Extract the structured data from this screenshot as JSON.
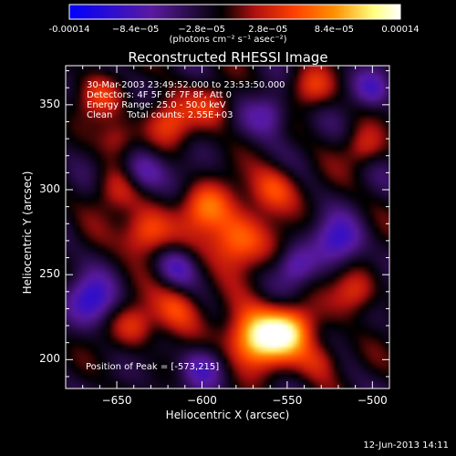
{
  "colorbar": {
    "ticks": [
      "-0.00014",
      "−8.4e−05",
      "−2.8e−05",
      "2.8e−05",
      "8.4e−05",
      "0.00014"
    ],
    "units": "(photons cm⁻² s⁻¹ asec⁻²)",
    "colors": [
      "#0000ff",
      "#5a1aa0",
      "#000000",
      "#b01010",
      "#ff4000",
      "#ff9000",
      "#ffff80",
      "#ffffff"
    ]
  },
  "chart_data": {
    "type": "heatmap",
    "title": "Reconstructed RHESSI Image",
    "xlabel": "Heliocentric X (arcsec)",
    "ylabel": "Heliocentric Y (arcsec)",
    "xlim": [
      -680,
      -490
    ],
    "ylim": [
      183,
      373
    ],
    "xticks": [
      -650,
      -600,
      -550,
      -500
    ],
    "yticks": [
      200,
      250,
      300,
      350
    ],
    "info_lines": [
      "30-Mar-2003 23:49:52.000 to 23:53:50.000",
      "Detectors: 4F 5F 6F 7F 8F, Att 0",
      "Energy Range: 25.0 - 50.0 keV",
      "Clean     Total counts: 2.55E+03"
    ],
    "peak_label": "Position of Peak = [-573,215]",
    "peak": [
      -573,
      215
    ],
    "sources": [
      {
        "x": -568,
        "y": 212,
        "amp": 1.0,
        "sigma": 12
      },
      {
        "x": -548,
        "y": 218,
        "amp": 0.7,
        "sigma": 10
      },
      {
        "x": -580,
        "y": 270,
        "amp": 0.65,
        "sigma": 12
      },
      {
        "x": -598,
        "y": 290,
        "amp": 0.55,
        "sigma": 10
      },
      {
        "x": -558,
        "y": 300,
        "amp": 0.5,
        "sigma": 10
      },
      {
        "x": -633,
        "y": 275,
        "amp": 0.6,
        "sigma": 10
      },
      {
        "x": -650,
        "y": 300,
        "amp": 0.35,
        "sigma": 10
      },
      {
        "x": -615,
        "y": 230,
        "amp": 0.45,
        "sigma": 10
      },
      {
        "x": -640,
        "y": 220,
        "amp": 0.4,
        "sigma": 9
      },
      {
        "x": -620,
        "y": 340,
        "amp": 0.45,
        "sigma": 10
      },
      {
        "x": -592,
        "y": 350,
        "amp": 0.35,
        "sigma": 9
      },
      {
        "x": -660,
        "y": 355,
        "amp": 0.35,
        "sigma": 9
      },
      {
        "x": -535,
        "y": 360,
        "amp": 0.4,
        "sigma": 9
      },
      {
        "x": -505,
        "y": 325,
        "amp": 0.35,
        "sigma": 8
      },
      {
        "x": -510,
        "y": 240,
        "amp": 0.4,
        "sigma": 9
      },
      {
        "x": -530,
        "y": 200,
        "amp": 0.35,
        "sigma": 9
      },
      {
        "x": -650,
        "y": 330,
        "amp": 0.3,
        "sigma": 8
      }
    ],
    "negatives": [
      {
        "x": -665,
        "y": 235,
        "amp": 0.5,
        "sigma": 10
      },
      {
        "x": -635,
        "y": 310,
        "amp": 0.45,
        "sigma": 9
      },
      {
        "x": -520,
        "y": 270,
        "amp": 0.45,
        "sigma": 10
      },
      {
        "x": -600,
        "y": 195,
        "amp": 0.4,
        "sigma": 9
      },
      {
        "x": -560,
        "y": 345,
        "amp": 0.4,
        "sigma": 9
      },
      {
        "x": -500,
        "y": 360,
        "amp": 0.4,
        "sigma": 8
      },
      {
        "x": -615,
        "y": 255,
        "amp": 0.35,
        "sigma": 8
      },
      {
        "x": -545,
        "y": 255,
        "amp": 0.35,
        "sigma": 8
      }
    ]
  },
  "footer": "12-Jun-2013 14:11"
}
